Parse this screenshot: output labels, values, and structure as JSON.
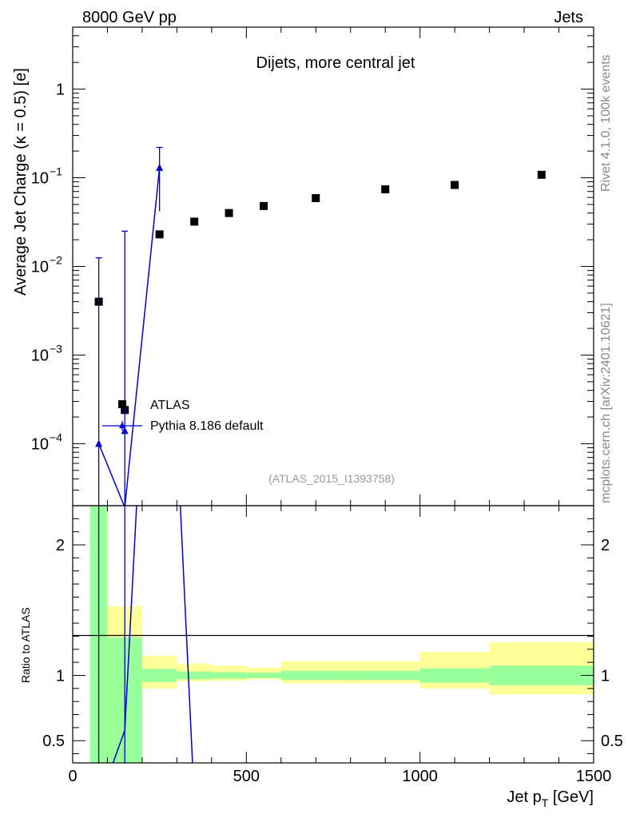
{
  "header": {
    "energy_label": "8000 GeV pp",
    "category_label": "Jets",
    "side_rivet": "Rivet 4.1.0,  100k events",
    "side_site": "mcplots.cern.ch [arXiv:2401.10621]",
    "analysis_id": "(ATLAS_2015_I1393758)"
  },
  "chart_data": {
    "type": "scatter",
    "title": "Dijets, more central jet",
    "xlabel": "Jet p_T [GeV]",
    "ylabel": "Average Jet Charge (κ = 0.5) [e]",
    "ratio_ylabel": "Ratio to ATLAS",
    "xlim": [
      0,
      1500
    ],
    "ylim": [
      2e-05,
      5
    ],
    "yscale": "log",
    "ratio_ylim": [
      0.33,
      2.3
    ],
    "x_ticks": [
      "0",
      "500",
      "1000",
      "1500"
    ],
    "y_ticks": [
      {
        "base": "10",
        "exp": "−4",
        "value": 0.0001
      },
      {
        "base": "10",
        "exp": "−3",
        "value": 0.001
      },
      {
        "base": "10",
        "exp": "−2",
        "value": 0.01
      },
      {
        "base": "10",
        "exp": "−1",
        "value": 0.1
      },
      {
        "base": "1",
        "exp": "",
        "value": 1
      }
    ],
    "ratio_ticks": [
      "0.5",
      "1",
      "2"
    ],
    "legend_position": "center-left",
    "series": [
      {
        "name": "ATLAS",
        "marker": "square",
        "color": "#000000",
        "x": [
          75,
          150,
          250,
          350,
          450,
          550,
          700,
          900,
          1100,
          1350
        ],
        "y": [
          0.004,
          0.00024,
          0.023,
          0.032,
          0.04,
          0.048,
          0.059,
          0.074,
          0.083,
          0.108
        ],
        "xlo": [
          50,
          100,
          200,
          300,
          400,
          500,
          600,
          800,
          1000,
          1200
        ],
        "xhi": [
          100,
          200,
          300,
          400,
          500,
          600,
          800,
          1000,
          1200,
          1500
        ],
        "band_stat_lo": [
          0.33,
          0.33,
          0.95,
          0.97,
          0.975,
          0.98,
          0.965,
          0.965,
          0.945,
          0.925
        ],
        "band_stat_hi": [
          2.3,
          1.29,
          1.05,
          1.03,
          1.025,
          1.02,
          1.035,
          1.035,
          1.055,
          1.075
        ],
        "band_tot_lo": [
          0.33,
          0.56,
          0.9,
          0.955,
          0.96,
          0.97,
          0.94,
          0.94,
          0.9,
          0.855
        ],
        "band_tot_hi": [
          2.3,
          1.53,
          1.15,
          1.09,
          1.075,
          1.06,
          1.11,
          1.11,
          1.18,
          1.255
        ]
      },
      {
        "name": "Pythia 8.186 default",
        "marker": "triangle",
        "color": "#0000cc",
        "x": [
          75,
          150,
          250
        ],
        "y": [
          0.0001,
          0.00014,
          0.13
        ],
        "ylo": [
          1e-06,
          1e-06,
          0.042
        ],
        "yhi": [
          0.0125,
          0.025,
          0.22
        ],
        "ratio_x": [
          75,
          150,
          250,
          350
        ],
        "ratio_y": [
          0.025,
          0.58,
          5.65,
          0.05
        ]
      }
    ]
  }
}
